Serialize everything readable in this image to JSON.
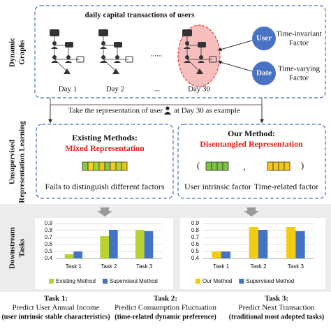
{
  "graphs": {
    "label": [
      "Dynamic",
      "Graphs"
    ],
    "title": "daily capital transactions of users",
    "days": [
      "Day 1",
      "Day 2",
      "...",
      "Day 30"
    ],
    "ellipsis": "......",
    "factors": [
      {
        "node": "User",
        "label": [
          "Time-invariant",
          "Factor"
        ]
      },
      {
        "node": "Date",
        "label": [
          "Time-varying",
          "Factor"
        ]
      }
    ]
  },
  "representation": {
    "label": [
      "Unsupervised",
      "Representation Learning"
    ],
    "example_pre": "Take the representation of user",
    "example_post": "at Day 30 as example",
    "existing": {
      "heading": "Existing Methods:",
      "subheading": "Mixed Representation",
      "caption": "Fails to distinguish different factors"
    },
    "ours": {
      "heading": "Our Method:",
      "subheading": "Disentangled Representation",
      "left_paren": "(",
      "comma": ",",
      "right_paren": ")",
      "factors": [
        "User intrinsic factor",
        "Time-related factor"
      ]
    }
  },
  "downstream": {
    "label": [
      "Downstream",
      "Tasks"
    ],
    "tasks": [
      {
        "name": "Task 1:",
        "goal": "Predict User Annual Income",
        "note": "(user intrinsic stable characteristics)"
      },
      {
        "name": "Task 2:",
        "goal": "Predict Consumption Fluctuation",
        "note": "(time-related dynamic preference)"
      },
      {
        "name": "Task 3:",
        "goal": "Predict Next Transaction",
        "note": "(traditional most adopted tasks)"
      }
    ]
  },
  "chart_data": [
    {
      "type": "bar",
      "categories": [
        "Task 1",
        "Task 2",
        "Task 3"
      ],
      "series": [
        {
          "name": "Existing Method",
          "color": "#b8d432",
          "values": [
            0.46,
            0.72,
            0.81
          ]
        },
        {
          "name": "Supervised Method",
          "color": "#4472c4",
          "values": [
            0.5,
            0.81,
            0.79
          ]
        }
      ],
      "ylim": [
        0.4,
        0.9
      ],
      "yticks": [
        0.4,
        0.5,
        0.6,
        0.7,
        0.8,
        0.9
      ],
      "grid": true
    },
    {
      "type": "bar",
      "categories": [
        "Task 1",
        "Task 2",
        "Task 3"
      ],
      "series": [
        {
          "name": "Our Method",
          "color": "#f2cc12",
          "values": [
            0.5,
            0.85,
            0.85
          ]
        },
        {
          "name": "Supervised Method",
          "color": "#4472c4",
          "values": [
            0.5,
            0.81,
            0.79
          ]
        }
      ],
      "ylim": [
        0.4,
        0.9
      ],
      "yticks": [
        0.4,
        0.5,
        0.6,
        0.7,
        0.8,
        0.9
      ],
      "grid": true
    }
  ]
}
